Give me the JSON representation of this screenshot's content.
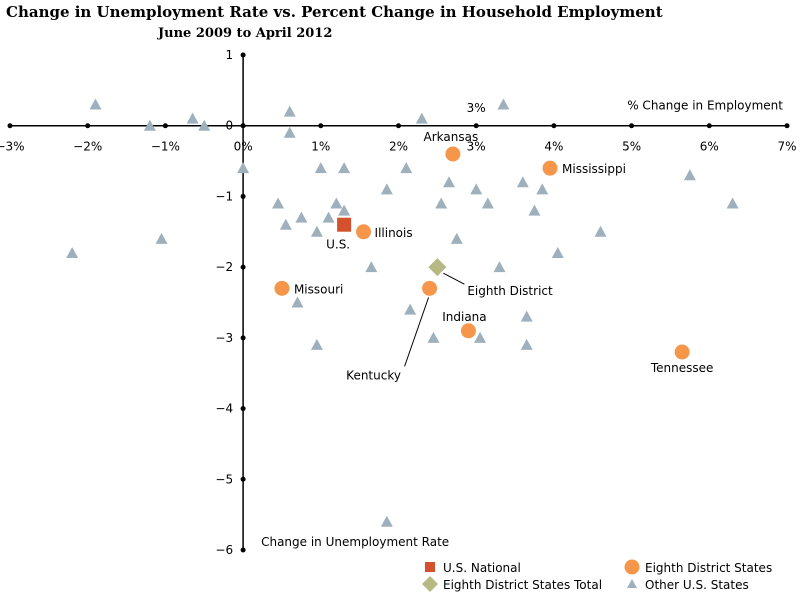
{
  "chart_data": {
    "type": "scatter",
    "title": "Change in Unemployment Rate vs. Percent Change in Household Employment",
    "subtitle": "June 2009 to April 2012",
    "xlabel": "% Change in Employment",
    "ylabel": "Change in Unemployment Rate",
    "xlim": [
      -3,
      7
    ],
    "ylim": [
      -6,
      1
    ],
    "grid": false,
    "legend_position": "bottom-right",
    "x_ticks": [
      {
        "value": -3,
        "label": "−3%"
      },
      {
        "value": -2,
        "label": "−2%"
      },
      {
        "value": -1,
        "label": "−1%"
      },
      {
        "value": 0,
        "label": "0%"
      },
      {
        "value": 1,
        "label": "1%"
      },
      {
        "value": 2,
        "label": "2%"
      },
      {
        "value": 3,
        "label": "3%"
      },
      {
        "value": 4,
        "label": "4%"
      },
      {
        "value": 5,
        "label": "5%"
      },
      {
        "value": 6,
        "label": "6%"
      },
      {
        "value": 7,
        "label": "7%"
      }
    ],
    "y_ticks": [
      {
        "value": 1,
        "label": "1"
      },
      {
        "value": 0,
        "label": "0"
      },
      {
        "value": -1,
        "label": "−1"
      },
      {
        "value": -2,
        "label": "−2"
      },
      {
        "value": -3,
        "label": "−3"
      },
      {
        "value": -4,
        "label": "−4"
      },
      {
        "value": -5,
        "label": "−5"
      },
      {
        "value": -6,
        "label": "−6"
      }
    ],
    "series": [
      {
        "name": "U.S. National",
        "marker": "square",
        "color": "#d4512b",
        "points": [
          {
            "x": 1.3,
            "y": -1.4,
            "label": "U.S."
          }
        ]
      },
      {
        "name": "Eighth District States",
        "marker": "circle",
        "color": "#f5964b",
        "points": [
          {
            "x": 2.7,
            "y": -0.4,
            "label": "Arkansas"
          },
          {
            "x": 3.95,
            "y": -0.6,
            "label": "Mississippi"
          },
          {
            "x": 1.55,
            "y": -1.5,
            "label": "Illinois"
          },
          {
            "x": 0.5,
            "y": -2.3,
            "label": "Missouri"
          },
          {
            "x": 2.4,
            "y": -2.3,
            "label": "Kentucky"
          },
          {
            "x": 2.9,
            "y": -2.9,
            "label": "Indiana"
          },
          {
            "x": 5.65,
            "y": -3.2,
            "label": "Tennessee"
          }
        ]
      },
      {
        "name": "Eighth District States Total",
        "marker": "diamond",
        "color": "#b7b984",
        "points": [
          {
            "x": 2.5,
            "y": -2.0,
            "label": "Eighth District"
          }
        ]
      },
      {
        "name": "Other U.S. States",
        "marker": "triangle",
        "color": "#9fb0bd",
        "points": [
          {
            "x": -1.9,
            "y": 0.3
          },
          {
            "x": -1.2,
            "y": 0.0
          },
          {
            "x": -0.65,
            "y": 0.1
          },
          {
            "x": -0.5,
            "y": 0.0
          },
          {
            "x": 0.6,
            "y": 0.2
          },
          {
            "x": 0.6,
            "y": -0.1
          },
          {
            "x": 2.3,
            "y": 0.1
          },
          {
            "x": 3.35,
            "y": 0.3
          },
          {
            "x": 0.0,
            "y": -0.6
          },
          {
            "x": 1.0,
            "y": -0.6
          },
          {
            "x": 1.3,
            "y": -0.6
          },
          {
            "x": 1.85,
            "y": -0.9
          },
          {
            "x": 2.1,
            "y": -0.6
          },
          {
            "x": 2.65,
            "y": -0.8
          },
          {
            "x": 3.0,
            "y": -0.9
          },
          {
            "x": 3.6,
            "y": -0.8
          },
          {
            "x": 3.85,
            "y": -0.9
          },
          {
            "x": 5.75,
            "y": -0.7
          },
          {
            "x": 0.45,
            "y": -1.1
          },
          {
            "x": 0.55,
            "y": -1.4
          },
          {
            "x": 0.75,
            "y": -1.3
          },
          {
            "x": 0.95,
            "y": -1.5
          },
          {
            "x": 1.1,
            "y": -1.3
          },
          {
            "x": 1.2,
            "y": -1.1
          },
          {
            "x": 1.3,
            "y": -1.2
          },
          {
            "x": 2.55,
            "y": -1.1
          },
          {
            "x": 3.15,
            "y": -1.1
          },
          {
            "x": 3.75,
            "y": -1.2
          },
          {
            "x": 6.3,
            "y": -1.1
          },
          {
            "x": -2.2,
            "y": -1.8
          },
          {
            "x": -1.05,
            "y": -1.6
          },
          {
            "x": 2.75,
            "y": -1.6
          },
          {
            "x": 4.05,
            "y": -1.8
          },
          {
            "x": 4.6,
            "y": -1.5
          },
          {
            "x": 1.65,
            "y": -2.0
          },
          {
            "x": 3.3,
            "y": -2.0
          },
          {
            "x": 0.7,
            "y": -2.5
          },
          {
            "x": 2.15,
            "y": -2.6
          },
          {
            "x": 3.65,
            "y": -2.7
          },
          {
            "x": 0.95,
            "y": -3.1
          },
          {
            "x": 2.45,
            "y": -3.0
          },
          {
            "x": 3.05,
            "y": -3.0
          },
          {
            "x": 3.65,
            "y": -3.1
          },
          {
            "x": 1.85,
            "y": -5.6
          }
        ]
      }
    ],
    "annotations": [
      {
        "text": "3%",
        "x": 3,
        "y": 0.25
      }
    ]
  }
}
